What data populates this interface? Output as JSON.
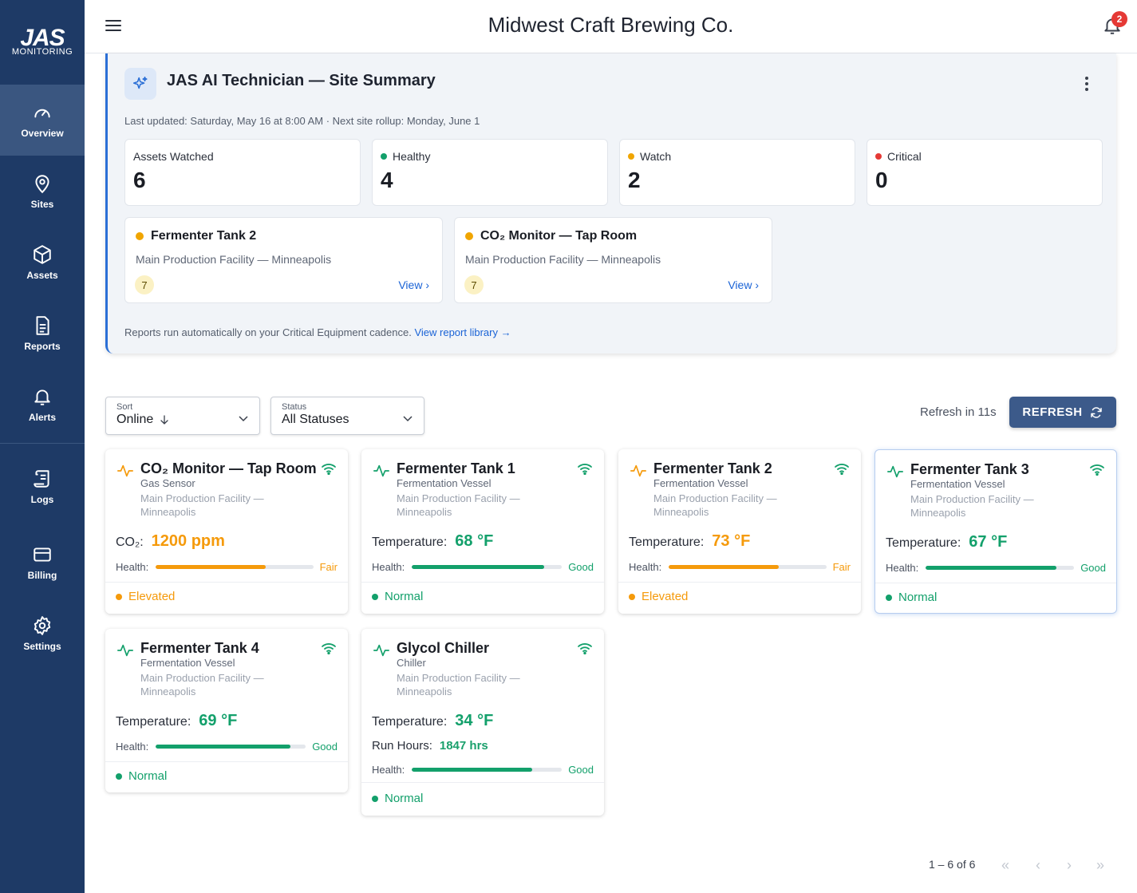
{
  "sidebar": {
    "logo_top": "JAS",
    "logo_bottom": "MONITORING",
    "items": [
      {
        "label": "Overview",
        "icon": "gauge-icon"
      },
      {
        "label": "Sites",
        "icon": "map-pin-icon"
      },
      {
        "label": "Assets",
        "icon": "cube-icon"
      },
      {
        "label": "Reports",
        "icon": "document-icon"
      },
      {
        "label": "Alerts",
        "icon": "bell-icon"
      },
      {
        "label": "Logs",
        "icon": "scroll-icon"
      },
      {
        "label": "Billing",
        "icon": "credit-card-icon"
      },
      {
        "label": "Settings",
        "icon": "gear-icon"
      }
    ]
  },
  "header": {
    "title": "Midwest Craft Brewing Co.",
    "notifications": "2"
  },
  "summary": {
    "title": "JAS AI Technician — Site Summary",
    "last_updated": "Last updated: Saturday, May 16 at 8:00 AM · Next site rollup: Monday, June 1",
    "stats": [
      {
        "label": "Assets Watched",
        "value": "6",
        "dot": ""
      },
      {
        "label": "Healthy",
        "value": "4",
        "dot": "#13a06b"
      },
      {
        "label": "Watch",
        "value": "2",
        "dot": "#f0a500"
      },
      {
        "label": "Critical",
        "value": "0",
        "dot": "#e53935"
      }
    ],
    "watch_items": [
      {
        "title": "Fermenter Tank 2",
        "location": "Main Production Facility — Minneapolis",
        "badge": "7",
        "link": "View ›"
      },
      {
        "title": "CO₂ Monitor — Tap Room",
        "location": "Main Production Facility — Minneapolis",
        "badge": "7",
        "link": "View ›"
      }
    ],
    "footer_text": "Reports run automatically on your Critical Equipment cadence.",
    "footer_link": "View report library →"
  },
  "filters": {
    "sort_label": "Sort",
    "sort_value": "Online",
    "status_label": "Status",
    "status_value": "All Statuses",
    "refresh_text": "Refresh in 11s",
    "refresh_button": "REFRESH"
  },
  "assets": [
    {
      "name": "CO₂ Monitor — Tap Room",
      "type": "Gas Sensor",
      "location": "Main Production Facility — Minneapolis",
      "metric_label": "CO₂:",
      "metric_value": "1200 ppm",
      "health_label": "Health:",
      "health": 0.7,
      "health_text": "Fair",
      "status": "Elevated",
      "tone": "orange"
    },
    {
      "name": "Fermenter Tank 1",
      "type": "Fermentation Vessel",
      "location": "Main Production Facility — Minneapolis",
      "metric_label": "Temperature:",
      "metric_value": "68 °F",
      "health_label": "Health:",
      "health": 0.88,
      "health_text": "Good",
      "status": "Normal",
      "tone": "green"
    },
    {
      "name": "Fermenter Tank 2",
      "type": "Fermentation Vessel",
      "location": "Main Production Facility — Minneapolis",
      "metric_label": "Temperature:",
      "metric_value": "73 °F",
      "health_label": "Health:",
      "health": 0.7,
      "health_text": "Fair",
      "status": "Elevated",
      "tone": "orange"
    },
    {
      "name": "Fermenter Tank 3",
      "type": "Fermentation Vessel",
      "location": "Main Production Facility — Minneapolis",
      "metric_label": "Temperature:",
      "metric_value": "67 °F",
      "health_label": "Health:",
      "health": 0.88,
      "health_text": "Good",
      "status": "Normal",
      "tone": "green"
    },
    {
      "name": "Fermenter Tank 4",
      "type": "Fermentation Vessel",
      "location": "Main Production Facility — Minneapolis",
      "metric_label": "Temperature:",
      "metric_value": "69 °F",
      "health_label": "Health:",
      "health": 0.9,
      "health_text": "Good",
      "status": "Normal",
      "tone": "green"
    },
    {
      "name": "Glycol Chiller",
      "type": "Chiller",
      "location": "Main Production Facility — Minneapolis",
      "metric_label": "Temperature:",
      "metric_value": "34 °F",
      "extra_label": "Run Hours:",
      "extra_value": "1847 hrs",
      "health_label": "Health:",
      "health": 0.8,
      "health_text": "Good",
      "status": "Normal",
      "tone": "green"
    }
  ],
  "pagination": {
    "range": "1 – 6 of 6",
    "first": "«",
    "prev": "‹",
    "next": "›",
    "last": "»"
  },
  "colors": {
    "sidebar": "#1e3a66",
    "accent": "#2b6fd6",
    "good": "#13a06b",
    "fair": "#f59a0b",
    "critical": "#e53935"
  }
}
